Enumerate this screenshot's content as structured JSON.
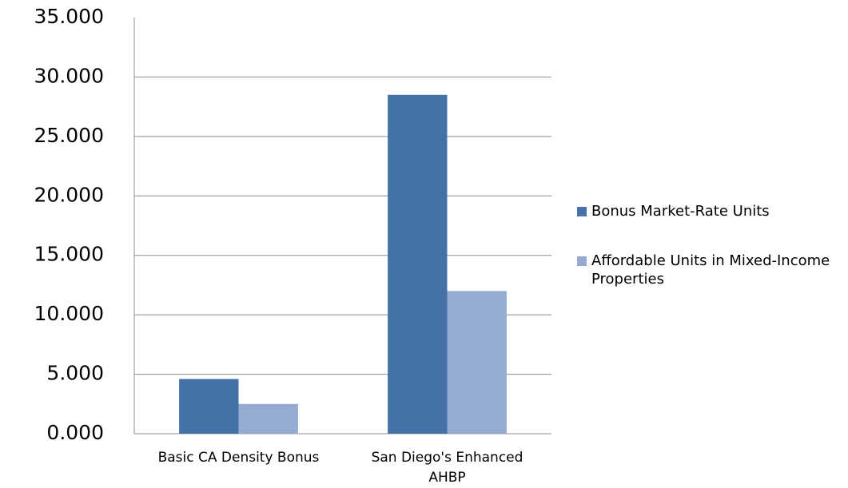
{
  "chart_data": {
    "type": "bar",
    "categories": [
      "Basic CA Density Bonus",
      "San Diego's Enhanced AHBP"
    ],
    "series": [
      {
        "name": "Bonus Market-Rate Units",
        "color": "#4472a8",
        "values": [
          4.6,
          28.5
        ]
      },
      {
        "name": "Affordable Units in Mixed-Income Properties",
        "color": "#95abd2",
        "values": [
          2.5,
          12.0
        ]
      }
    ],
    "ylim": [
      0,
      35
    ],
    "yticks": [
      {
        "value": 0,
        "label": "0.000"
      },
      {
        "value": 5,
        "label": "5.000"
      },
      {
        "value": 10,
        "label": "10.000"
      },
      {
        "value": 15,
        "label": "15.000"
      },
      {
        "value": 20,
        "label": "20.000"
      },
      {
        "value": 25,
        "label": "25.000"
      },
      {
        "value": 30,
        "label": "30.000"
      },
      {
        "value": 35,
        "label": "35.000"
      }
    ],
    "grid": true,
    "legend": "right"
  }
}
